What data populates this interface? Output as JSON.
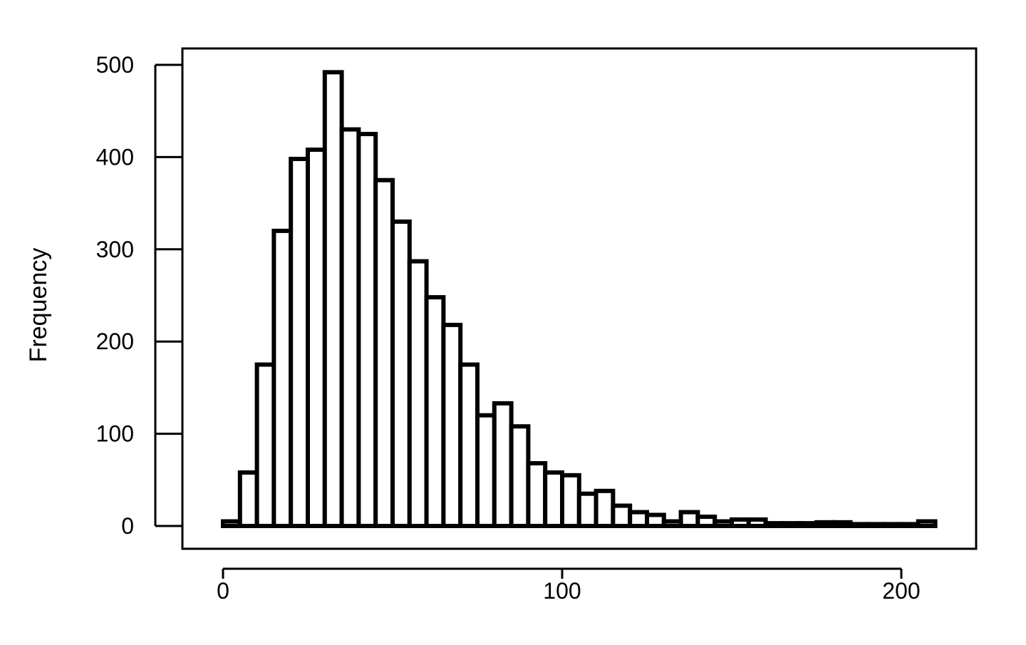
{
  "chart_data": {
    "type": "bar",
    "title": "",
    "xlabel": "",
    "ylabel": "Frequency",
    "xlim": [
      -5,
      220
    ],
    "ylim": [
      -25,
      525
    ],
    "bin_width": 5,
    "bin_starts": [
      0,
      5,
      10,
      15,
      20,
      25,
      30,
      35,
      40,
      45,
      50,
      55,
      60,
      65,
      70,
      75,
      80,
      85,
      90,
      95,
      100,
      105,
      110,
      115,
      120,
      125,
      130,
      135,
      140,
      145,
      150,
      155,
      160,
      165,
      170,
      175,
      180,
      185,
      190,
      195,
      200,
      205
    ],
    "values": [
      5,
      58,
      175,
      320,
      398,
      408,
      492,
      430,
      425,
      375,
      330,
      287,
      248,
      218,
      175,
      120,
      133,
      108,
      68,
      58,
      55,
      35,
      38,
      22,
      15,
      12,
      5,
      15,
      10,
      5,
      7,
      7,
      3,
      3,
      3,
      4,
      4,
      2,
      2,
      2,
      2,
      5
    ],
    "x_ticks": [
      "0",
      "100",
      "200"
    ],
    "y_ticks": [
      "0",
      "100",
      "200",
      "300",
      "400",
      "500"
    ],
    "grid": false,
    "legend": "none",
    "colors": {
      "bar_fill": "#ffffff",
      "bar_stroke": "#000000",
      "axis": "#000000"
    }
  }
}
